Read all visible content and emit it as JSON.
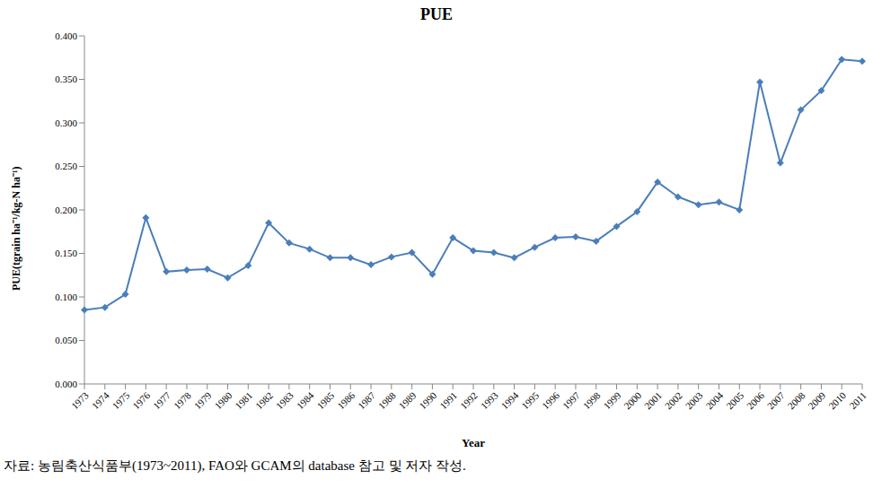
{
  "chart_data": {
    "type": "line",
    "title": "PUE",
    "x_label": "Year",
    "y_label": "PUE(tgrain ha⁻¹/kg-N ha⁻¹)",
    "annotations": [
      "자료: 농림축산식품부(1973~2011), FAO와 GCAM의 database 참고 및 저자 작성."
    ],
    "categories": [
      "1973",
      "1974",
      "1975",
      "1976",
      "1977",
      "1978",
      "1979",
      "1980",
      "1981",
      "1982",
      "1983",
      "1984",
      "1985",
      "1986",
      "1987",
      "1988",
      "1989",
      "1990",
      "1991",
      "1992",
      "1993",
      "1994",
      "1995",
      "1996",
      "1997",
      "1998",
      "1999",
      "2000",
      "2001",
      "2002",
      "2003",
      "2004",
      "2005",
      "2006",
      "2007",
      "2008",
      "2009",
      "2010",
      "2011"
    ],
    "series": [
      {
        "name": "PUE",
        "color": "#4a7ebb",
        "marker": "diamond",
        "values": [
          0.085,
          0.088,
          0.103,
          0.191,
          0.129,
          0.131,
          0.132,
          0.122,
          0.136,
          0.185,
          0.162,
          0.155,
          0.145,
          0.145,
          0.137,
          0.146,
          0.151,
          0.126,
          0.168,
          0.153,
          0.151,
          0.145,
          0.157,
          0.168,
          0.169,
          0.164,
          0.181,
          0.198,
          0.232,
          0.215,
          0.206,
          0.209,
          0.2,
          0.347,
          0.254,
          0.315,
          0.337,
          0.373,
          0.371
        ]
      }
    ],
    "ylim": [
      0,
      0.4
    ],
    "yticks": [
      {
        "value": 0,
        "label": "0.000"
      },
      {
        "value": 0.05,
        "label": "0.050"
      },
      {
        "value": 0.1,
        "label": "0.100"
      },
      {
        "value": 0.15,
        "label": "0.150"
      },
      {
        "value": 0.2,
        "label": "0.200"
      },
      {
        "value": 0.25,
        "label": "0.250"
      },
      {
        "value": 0.3,
        "label": "0.300"
      },
      {
        "value": 0.35,
        "label": "0.350"
      },
      {
        "value": 0.4,
        "label": "0.400"
      }
    ],
    "grid": false
  }
}
